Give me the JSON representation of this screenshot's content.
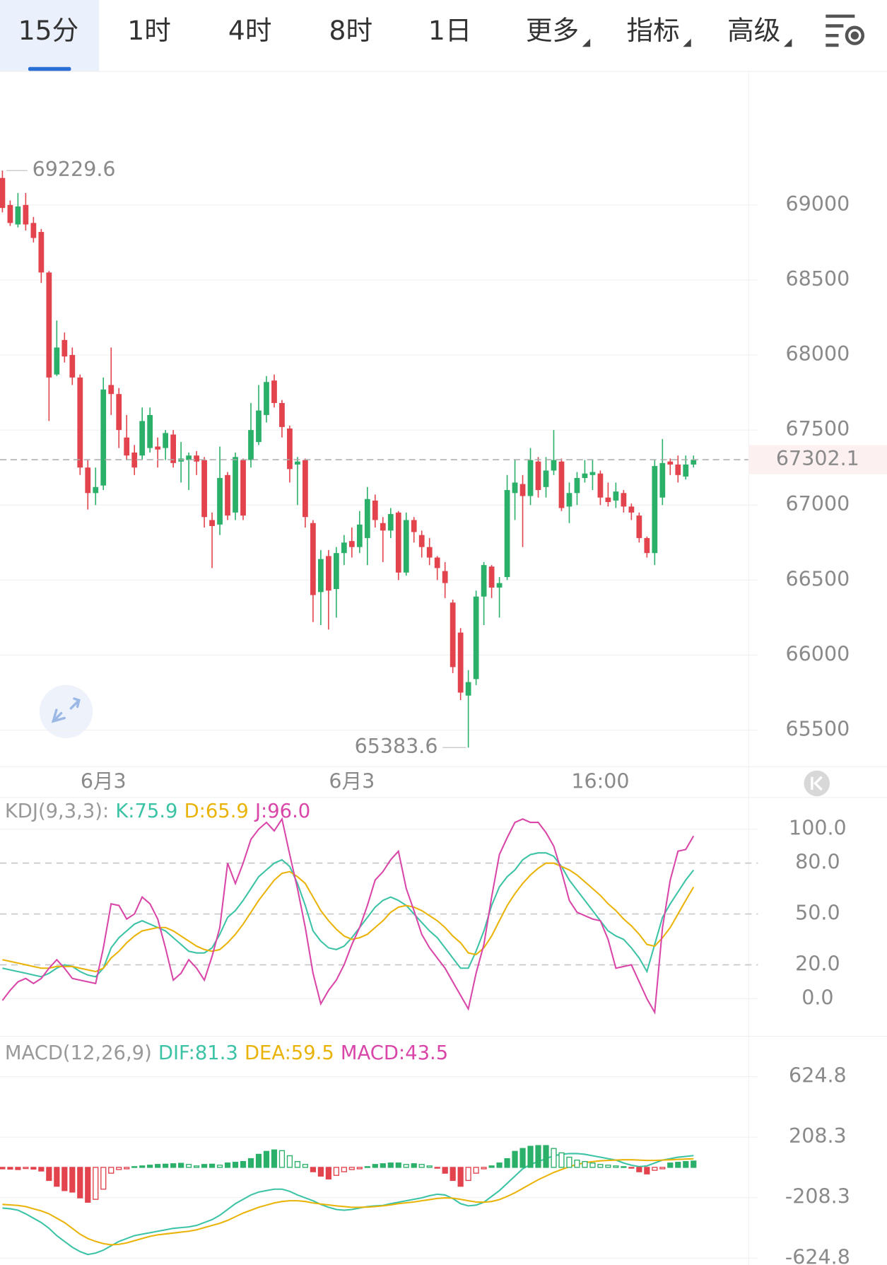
{
  "tabs": [
    "15分",
    "1时",
    "4时",
    "8时",
    "1日",
    "更多",
    "指标",
    "高级"
  ],
  "active_tab": 0,
  "chart_data": [
    {
      "type": "candlestick",
      "categories": [
        null,
        null,
        null,
        null,
        null,
        null,
        null,
        null,
        null,
        null,
        null,
        null,
        null,
        "6月3",
        null,
        null,
        null,
        null,
        null,
        null,
        null,
        null,
        null,
        null,
        null,
        null,
        null,
        null,
        null,
        null,
        null,
        null,
        null,
        null,
        null,
        null,
        null,
        null,
        null,
        null,
        null,
        null,
        null,
        null,
        null,
        "6月3",
        null,
        null,
        null,
        null,
        null,
        null,
        null,
        null,
        null,
        null,
        null,
        null,
        null,
        null,
        null,
        null,
        null,
        null,
        null,
        null,
        null,
        null,
        null,
        null,
        null,
        null,
        null,
        null,
        null,
        null,
        null,
        "16:00",
        null,
        null,
        null,
        null,
        null,
        null,
        null,
        null,
        null,
        null,
        null,
        null
      ],
      "open": [
        69180,
        69000,
        68870,
        69000,
        68880,
        68820,
        68550,
        67870,
        68100,
        68000,
        67850,
        67250,
        67080,
        67130,
        67800,
        67740,
        67450,
        67350,
        67330,
        67380,
        67390,
        67380,
        67470,
        67290,
        67300,
        67330,
        67300,
        66900,
        66870,
        67200,
        66950,
        67300,
        67300,
        67420,
        67600,
        67830,
        67680,
        67510,
        67270,
        67300,
        66880,
        66420,
        66660,
        66440,
        66680,
        66760,
        66720,
        66780,
        67030,
        66880,
        66830,
        66950,
        66550,
        66900,
        66800,
        66720,
        66650,
        66560,
        66350,
        66150,
        65730,
        65840,
        66390,
        66590,
        66450,
        66520,
        67080,
        67140,
        67060,
        67290,
        67120,
        67230,
        67290,
        66990,
        67080,
        67180,
        67200,
        67210,
        67050,
        67030,
        67080,
        66990,
        66930,
        66780,
        66680,
        67050,
        67290,
        67270,
        67190,
        67270
      ],
      "high": [
        69229.6,
        69030,
        69080,
        69080,
        68920,
        68840,
        68560,
        68230,
        68150,
        68050,
        67870,
        67300,
        67250,
        67850,
        68050,
        67780,
        67600,
        67400,
        67650,
        67650,
        67450,
        67500,
        67500,
        67420,
        67350,
        67360,
        67320,
        66950,
        67390,
        67220,
        67350,
        67310,
        67680,
        67800,
        67860,
        67870,
        67700,
        67530,
        67320,
        67310,
        66900,
        66700,
        66700,
        66720,
        66800,
        66850,
        66960,
        67120,
        67070,
        66920,
        66980,
        66960,
        66950,
        66920,
        66830,
        66780,
        66660,
        66620,
        66370,
        66180,
        65900,
        66430,
        66620,
        66600,
        66520,
        67200,
        67300,
        67200,
        67380,
        67320,
        67320,
        67500,
        67310,
        67150,
        67220,
        67300,
        67300,
        67230,
        67150,
        67150,
        67100,
        67010,
        66950,
        66790,
        67300,
        67440,
        67310,
        67330,
        67330,
        67330
      ],
      "low": [
        68950,
        68860,
        68850,
        68830,
        68750,
        68480,
        67560,
        67860,
        67950,
        67800,
        67200,
        66970,
        67000,
        67100,
        67600,
        67380,
        67300,
        67200,
        67300,
        67350,
        67250,
        67300,
        67250,
        67150,
        67100,
        67200,
        66850,
        66580,
        66800,
        66900,
        66900,
        66900,
        67250,
        67400,
        67550,
        67650,
        67450,
        67150,
        67000,
        66850,
        66220,
        66200,
        66170,
        66250,
        66600,
        66650,
        66680,
        66600,
        66850,
        66620,
        66780,
        66500,
        66530,
        66750,
        66650,
        66600,
        66500,
        66380,
        65880,
        65700,
        65383.6,
        65800,
        66200,
        66380,
        66250,
        66500,
        66900,
        66720,
        67000,
        67050,
        67050,
        67200,
        66960,
        66880,
        67000,
        67150,
        67100,
        67000,
        66990,
        66980,
        66950,
        66900,
        66750,
        66650,
        66600,
        67000,
        67200,
        67150,
        67170,
        67250
      ],
      "close": [
        68980,
        68880,
        68990,
        68870,
        68780,
        68550,
        67850,
        68050,
        67990,
        67850,
        67250,
        67080,
        67120,
        67770,
        67740,
        67500,
        67330,
        67250,
        67560,
        67600,
        67370,
        67480,
        67280,
        67310,
        67330,
        67290,
        66920,
        66860,
        67180,
        66930,
        67320,
        66930,
        67500,
        67630,
        67820,
        67680,
        67520,
        67240,
        67290,
        66920,
        66400,
        66640,
        66430,
        66680,
        66750,
        66720,
        66870,
        67040,
        66900,
        66830,
        66940,
        66550,
        66900,
        66820,
        66720,
        66650,
        66580,
        66480,
        65920,
        65750,
        65820,
        66390,
        66600,
        66450,
        66480,
        67100,
        67150,
        67060,
        67300,
        67100,
        67230,
        67300,
        66980,
        67080,
        67180,
        67210,
        67220,
        67050,
        67020,
        67090,
        66990,
        66950,
        66780,
        66680,
        67260,
        67280,
        67270,
        67200,
        67270,
        67302.1
      ],
      "up_color": "#2ab069",
      "down_color": "#e2434d",
      "ylim": [
        65258,
        69882
      ],
      "yticks": [
        65500,
        66000,
        66500,
        67000,
        67500,
        68000,
        68500,
        69000
      ],
      "grid": true,
      "max_label": 69229.6,
      "min_label": 65383.6,
      "last_price": 67302.1,
      "last_price_color": "#e2434d"
    },
    {
      "type": "line",
      "title": "KDJ(9,3,3):",
      "series": [
        {
          "name": "K",
          "label": "K:75.9",
          "color": "#3cc3a6",
          "values": [
            18,
            17,
            16,
            15,
            14,
            13,
            15,
            18,
            20,
            19,
            16,
            14,
            13,
            18,
            30,
            36,
            40,
            44,
            46,
            44,
            42,
            40,
            36,
            32,
            28,
            27,
            27,
            30,
            38,
            48,
            52,
            58,
            65,
            72,
            76,
            80,
            82,
            78,
            68,
            55,
            40,
            34,
            30,
            29,
            31,
            36,
            42,
            48,
            54,
            58,
            60,
            58,
            55,
            50,
            45,
            40,
            36,
            30,
            24,
            18,
            18,
            28,
            40,
            55,
            66,
            72,
            76,
            82,
            85,
            86,
            86,
            84,
            78,
            70,
            64,
            58,
            52,
            46,
            40,
            37,
            35,
            30,
            24,
            16,
            32,
            48,
            56,
            63,
            70,
            75.9
          ]
        },
        {
          "name": "D",
          "label": "D:65.9",
          "color": "#eab308",
          "values": [
            23,
            22,
            21,
            20,
            19,
            18,
            18,
            19,
            19,
            19,
            18,
            17,
            16,
            18,
            24,
            28,
            33,
            37,
            40,
            41,
            42,
            42,
            40,
            37,
            34,
            31,
            29,
            28,
            29,
            33,
            38,
            44,
            51,
            58,
            64,
            70,
            74,
            75,
            72,
            68,
            60,
            52,
            46,
            41,
            37,
            35,
            36,
            38,
            42,
            46,
            51,
            54,
            55,
            54,
            52,
            49,
            46,
            42,
            37,
            33,
            27,
            26,
            30,
            37,
            46,
            55,
            62,
            68,
            73,
            77,
            80,
            80,
            78,
            76,
            73,
            69,
            65,
            61,
            56,
            52,
            47,
            43,
            38,
            32,
            31,
            36,
            42,
            50,
            58,
            65.9
          ]
        },
        {
          "name": "J",
          "label": "J:96.0",
          "color": "#d946a8",
          "values": [
            -1,
            5,
            10,
            12,
            9,
            12,
            18,
            23,
            18,
            12,
            11,
            10,
            9,
            30,
            56,
            55,
            47,
            50,
            60,
            56,
            47,
            30,
            11,
            15,
            23,
            18,
            11,
            25,
            42,
            80,
            68,
            80,
            94,
            100,
            104,
            99,
            106,
            85,
            65,
            42,
            15,
            -3,
            5,
            11,
            20,
            32,
            42,
            55,
            70,
            75,
            82,
            87,
            65,
            52,
            38,
            30,
            24,
            18,
            10,
            2,
            -6,
            15,
            32,
            60,
            85,
            95,
            104,
            106,
            104,
            104,
            98,
            90,
            75,
            58,
            51,
            49,
            47,
            46,
            35,
            18,
            19,
            20,
            10,
            0,
            -8,
            42,
            70,
            87,
            88,
            96
          ]
        }
      ],
      "ylim": [
        -20,
        118
      ],
      "yticks": [
        {
          "value": 0,
          "label": "0.0"
        },
        {
          "value": 20,
          "label": "20.0"
        },
        {
          "value": 50,
          "label": "50.0"
        },
        {
          "value": 80,
          "label": "80.0"
        },
        {
          "value": 100,
          "label": "100.0"
        }
      ]
    },
    {
      "type": "macd",
      "title": "MACD(12,26,9)",
      "series": [
        {
          "name": "DIF",
          "label": "DIF:81.3",
          "color": "#3cc3a6",
          "values": [
            -280,
            -285,
            -295,
            -320,
            -350,
            -380,
            -420,
            -470,
            -510,
            -550,
            -580,
            -600,
            -590,
            -570,
            -540,
            -510,
            -490,
            -470,
            -460,
            -450,
            -440,
            -430,
            -420,
            -415,
            -410,
            -400,
            -380,
            -360,
            -330,
            -290,
            -250,
            -220,
            -190,
            -170,
            -160,
            -150,
            -150,
            -165,
            -190,
            -210,
            -230,
            -255,
            -275,
            -290,
            -295,
            -290,
            -280,
            -270,
            -265,
            -262,
            -250,
            -240,
            -230,
            -220,
            -210,
            -195,
            -185,
            -190,
            -215,
            -250,
            -265,
            -260,
            -240,
            -200,
            -160,
            -110,
            -60,
            -10,
            20,
            40,
            60,
            80,
            90,
            95,
            95,
            90,
            80,
            70,
            60,
            50,
            30,
            15,
            5,
            10,
            30,
            50,
            60,
            70,
            75,
            81.3
          ]
        },
        {
          "name": "DEA",
          "label": "DEA:59.5",
          "color": "#eab308",
          "values": [
            -255,
            -258,
            -262,
            -270,
            -285,
            -300,
            -320,
            -350,
            -380,
            -420,
            -460,
            -490,
            -510,
            -525,
            -533,
            -530,
            -520,
            -505,
            -490,
            -475,
            -465,
            -458,
            -452,
            -446,
            -440,
            -430,
            -415,
            -400,
            -385,
            -365,
            -340,
            -315,
            -295,
            -275,
            -260,
            -245,
            -235,
            -230,
            -230,
            -235,
            -245,
            -252,
            -258,
            -265,
            -270,
            -275,
            -275,
            -273,
            -270,
            -265,
            -258,
            -250,
            -244,
            -238,
            -230,
            -222,
            -214,
            -210,
            -212,
            -220,
            -230,
            -238,
            -240,
            -235,
            -222,
            -200,
            -175,
            -145,
            -115,
            -85,
            -60,
            -35,
            -15,
            5,
            20,
            32,
            40,
            45,
            48,
            50,
            52,
            52,
            50,
            48,
            48,
            50,
            52,
            55,
            57,
            59.5
          ]
        },
        {
          "name": "MACD",
          "label": "MACD:43.5",
          "color": "#d946a8",
          "bars": true,
          "values": [
            -10,
            -12,
            -15,
            -8,
            -12,
            -25,
            -90,
            -130,
            -160,
            -170,
            -210,
            -240,
            -220,
            -150,
            -40,
            -15,
            -10,
            5,
            10,
            15,
            20,
            22,
            25,
            28,
            20,
            10,
            20,
            22,
            15,
            30,
            35,
            40,
            60,
            90,
            110,
            120,
            115,
            80,
            40,
            20,
            -30,
            -60,
            -80,
            -55,
            -30,
            -15,
            -10,
            5,
            20,
            25,
            30,
            30,
            20,
            25,
            20,
            10,
            -5,
            -40,
            -90,
            -130,
            -90,
            -40,
            -10,
            10,
            30,
            60,
            110,
            130,
            145,
            150,
            150,
            130,
            100,
            70,
            50,
            40,
            30,
            20,
            15,
            10,
            5,
            -5,
            -30,
            -45,
            -20,
            -10,
            30,
            35,
            40,
            43.5
          ]
        }
      ],
      "up_color": "#2ab069",
      "down_color": "#e2434d",
      "ylim": [
        -672,
        872
      ],
      "yticks": [
        -624.8,
        -208.3,
        208.3,
        624.8
      ]
    }
  ]
}
